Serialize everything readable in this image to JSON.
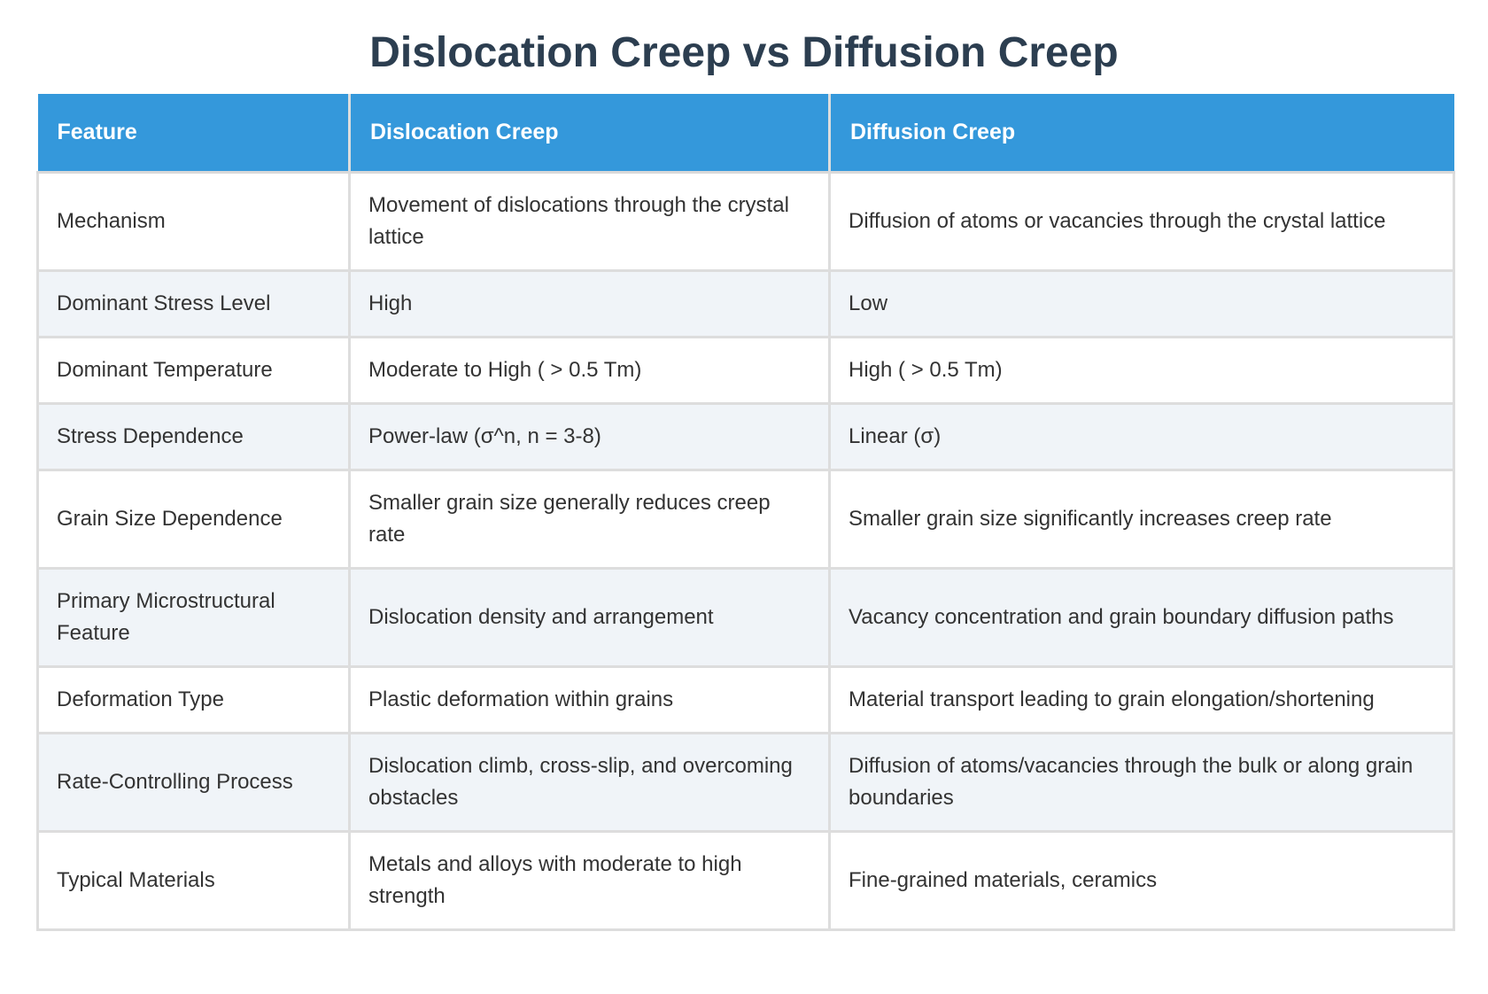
{
  "title": "Dislocation Creep vs Diffusion Creep",
  "table": {
    "headers": [
      "Feature",
      "Dislocation Creep",
      "Diffusion Creep"
    ],
    "rows": [
      [
        "Mechanism",
        "Movement of dislocations through the crystal lattice",
        "Diffusion of atoms or vacancies through the crystal lattice"
      ],
      [
        "Dominant Stress Level",
        "High",
        "Low"
      ],
      [
        "Dominant Temperature",
        "Moderate to High ( > 0.5 Tm)",
        "High ( > 0.5 Tm)"
      ],
      [
        "Stress Dependence",
        "Power-law (σ^n, n = 3-8)",
        "Linear (σ)"
      ],
      [
        "Grain Size Dependence",
        "Smaller grain size generally reduces creep rate",
        "Smaller grain size significantly increases creep rate"
      ],
      [
        "Primary Microstructural Feature",
        "Dislocation density and arrangement",
        "Vacancy concentration and grain boundary diffusion paths"
      ],
      [
        "Deformation Type",
        "Plastic deformation within grains",
        "Material transport leading to grain elongation/shortening"
      ],
      [
        "Rate-Controlling Process",
        "Dislocation climb, cross-slip, and overcoming obstacles",
        "Diffusion of atoms/vacancies through the bulk or along grain boundaries"
      ],
      [
        "Typical Materials",
        "Metals and alloys with moderate to high strength",
        "Fine-grained materials, ceramics"
      ]
    ]
  },
  "colors": {
    "title": "#2c3e50",
    "header_bg": "#3498db",
    "header_text": "#ffffff",
    "row_alt_bg": "#f0f4f8",
    "border": "#dddddd"
  }
}
